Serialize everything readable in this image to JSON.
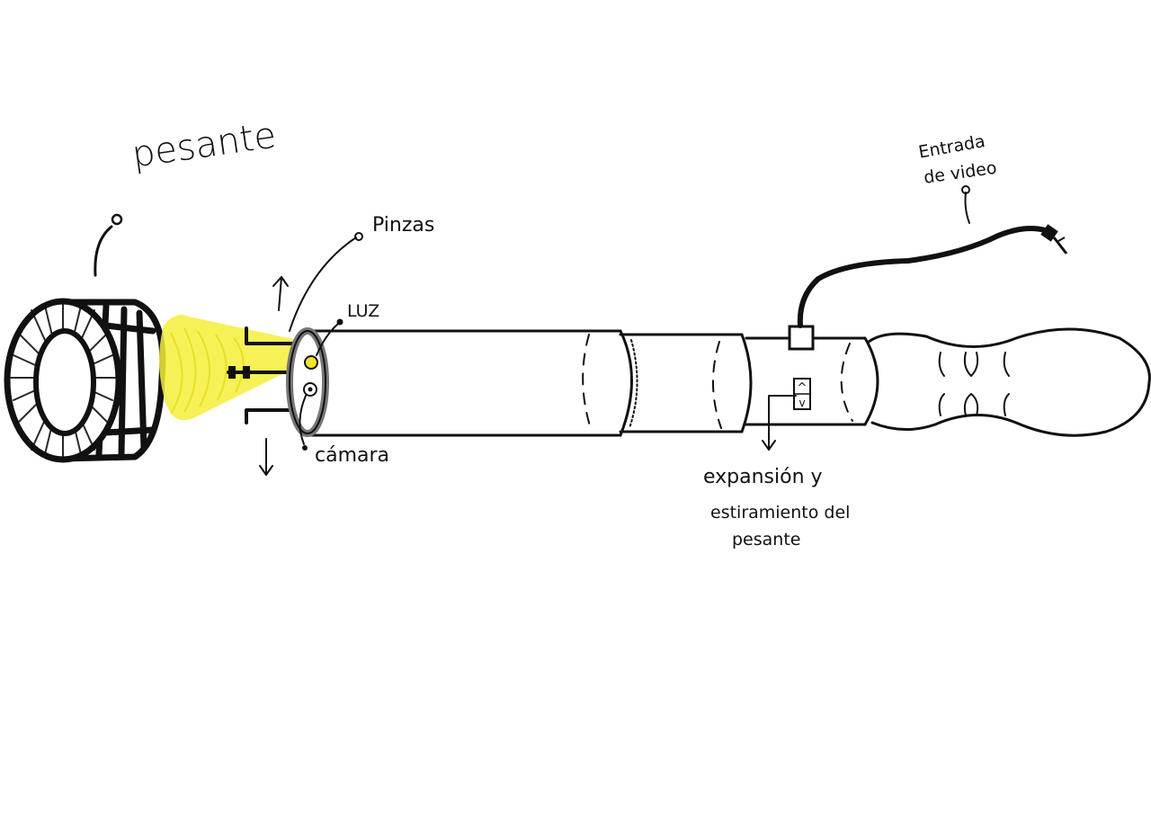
{
  "labels": {
    "pesante_top": "pesante",
    "pinzas": "Pinzas",
    "luz": "LUZ",
    "camara": "cámara",
    "entrada": "Entrada",
    "de_video": "de video",
    "expansion_line1": "expansión y",
    "expansion_line2": "estiramiento del",
    "expansion_line3": "pesante"
  },
  "control_symbols": {
    "up": "^",
    "down": "v"
  },
  "colors": {
    "ink": "#111111",
    "light_beam": "#f4ee3a",
    "light_dot": "#f2e52a",
    "ring": "#777777",
    "background": "#ffffff"
  }
}
